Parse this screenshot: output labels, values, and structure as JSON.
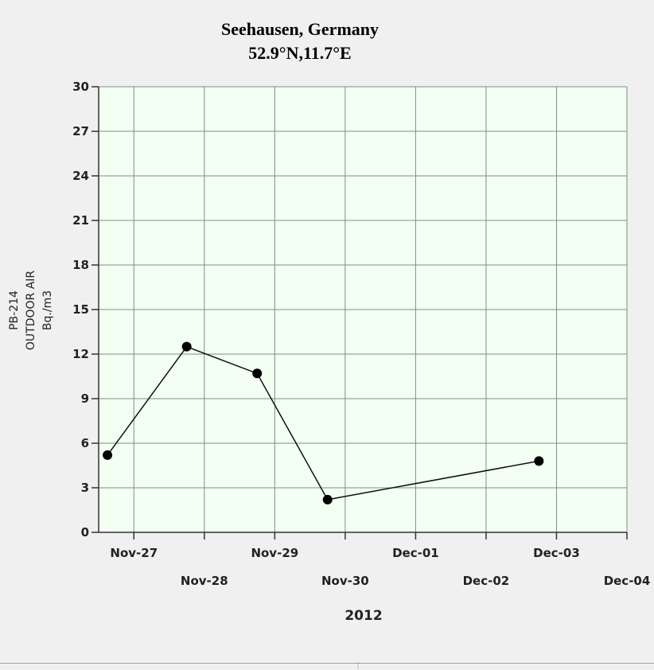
{
  "chart_data": {
    "type": "line",
    "title": "Seehausen, Germany",
    "subtitle": "52.9°N,11.7°E",
    "ylabel_lines": [
      "PB-214",
      "OUTDOOR AIR",
      "Bq./m3"
    ],
    "xlabel": "2012",
    "ylim": [
      0,
      30
    ],
    "yticks": [
      0,
      3,
      6,
      9,
      12,
      15,
      18,
      21,
      24,
      27,
      30
    ],
    "xlim": [
      "Nov-26 12:00",
      "Dec-04 00:00"
    ],
    "xticks": [
      "Nov-27",
      "Nov-28",
      "Nov-29",
      "Nov-30",
      "Dec-01",
      "Dec-02",
      "Dec-03",
      "Dec-04"
    ],
    "grid": true,
    "series": [
      {
        "x": [
          "Nov-26 15:00",
          "Nov-27 18:00",
          "Nov-28 18:00",
          "Nov-29 18:00",
          "Dec-02 18:00"
        ],
        "values": [
          5.2,
          12.5,
          10.7,
          2.2,
          4.8
        ]
      }
    ],
    "colors": {
      "plot_background": "#f2fff2",
      "grid": "#7f8f7f",
      "line": "#111111",
      "marker": "#000000"
    }
  }
}
